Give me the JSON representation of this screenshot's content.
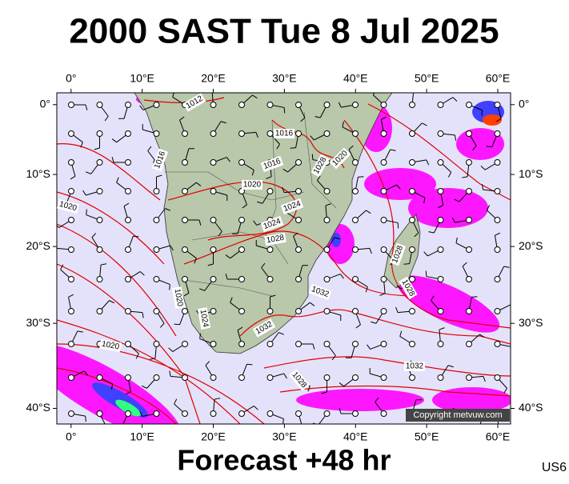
{
  "title": "2000 SAST Tue 8 Jul 2025",
  "footer": "Forecast +48 hr",
  "product": "US6",
  "copyright": "Copyright metvuw.com",
  "lon_range": [
    -2,
    61.8
  ],
  "lat_range": [
    1.7,
    -41.7
  ],
  "lon_ticks": [
    {
      "value": 0,
      "label": "0°"
    },
    {
      "value": 10,
      "label": "10°E"
    },
    {
      "value": 20,
      "label": "20°E"
    },
    {
      "value": 30,
      "label": "30°E"
    },
    {
      "value": 40,
      "label": "40°E"
    },
    {
      "value": 50,
      "label": "50°E"
    },
    {
      "value": 60,
      "label": "60°E"
    }
  ],
  "lat_ticks": [
    {
      "value": 0,
      "label": "0°"
    },
    {
      "value": -10,
      "label": "10°S"
    },
    {
      "value": -20,
      "label": "20°S"
    },
    {
      "value": -30,
      "label": "30°S"
    },
    {
      "value": -40,
      "label": "40°S"
    }
  ],
  "contour_labels": [
    "1012",
    "1016",
    "1016",
    "1016",
    "1020",
    "1020",
    "1024",
    "1024",
    "1028",
    "1028",
    "1020",
    "1020",
    "1024",
    "1032",
    "1020",
    "1032",
    "1028",
    "1032",
    "1028",
    "1028"
  ]
}
